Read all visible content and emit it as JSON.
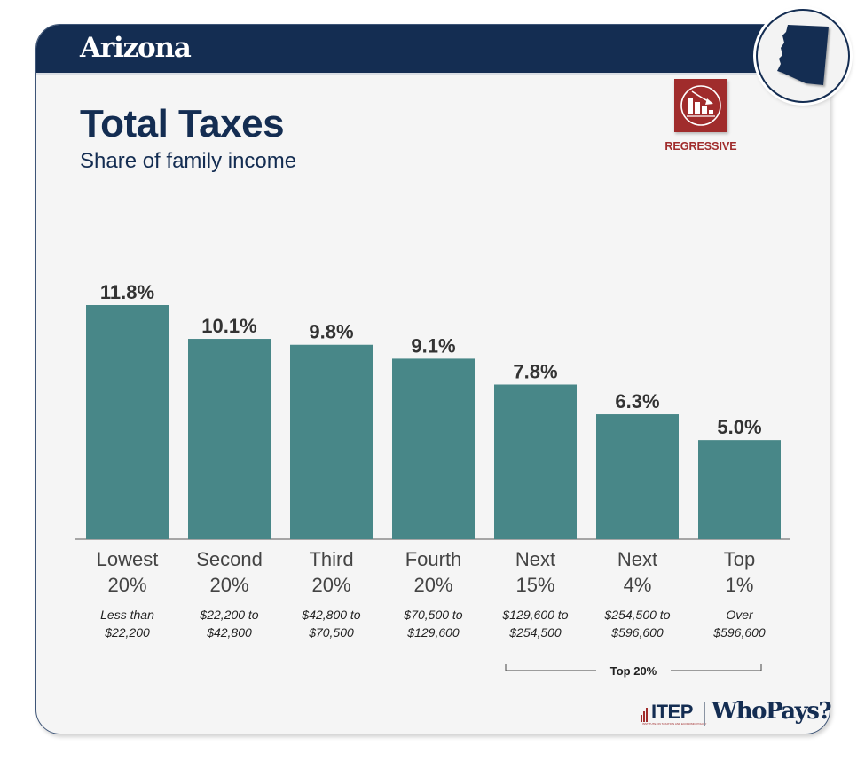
{
  "header": {
    "state_name": "Arizona",
    "state_badge_icon": "arizona-state-shape-icon"
  },
  "title": "Total Taxes",
  "subtitle": "Share of family income",
  "rating": {
    "icon": "regressive-chart-icon",
    "label": "REGRESSIVE",
    "color": "#a02c2c"
  },
  "colors": {
    "navy": "#142d52",
    "bar": "#488788",
    "card_bg": "#f5f5f5"
  },
  "chart_data": {
    "type": "bar",
    "title": "Total Taxes",
    "subtitle": "Share of family income",
    "xlabel": "",
    "ylabel": "",
    "ylim": [
      0,
      11.8
    ],
    "grid": false,
    "categories": [
      {
        "line1": "Lowest",
        "line2": "20%",
        "range1": "Less than",
        "range2": "$22,200"
      },
      {
        "line1": "Second",
        "line2": "20%",
        "range1": "$22,200 to",
        "range2": "$42,800"
      },
      {
        "line1": "Third",
        "line2": "20%",
        "range1": "$42,800 to",
        "range2": "$70,500"
      },
      {
        "line1": "Fourth",
        "line2": "20%",
        "range1": "$70,500 to",
        "range2": "$129,600"
      },
      {
        "line1": "Next",
        "line2": "15%",
        "range1": "$129,600 to",
        "range2": "$254,500"
      },
      {
        "line1": "Next",
        "line2": "4%",
        "range1": "$254,500 to",
        "range2": "$596,600"
      },
      {
        "line1": "Top",
        "line2": "1%",
        "range1": "Over",
        "range2": "$596,600"
      }
    ],
    "values": [
      11.8,
      10.1,
      9.8,
      9.1,
      7.8,
      6.3,
      5.0
    ],
    "value_labels": [
      "11.8%",
      "10.1%",
      "9.8%",
      "9.1%",
      "7.8%",
      "6.3%",
      "5.0%"
    ],
    "bracket": {
      "label": "Top 20%",
      "from_index": 4,
      "to_index": 6
    }
  },
  "footer": {
    "itep_label": "ITEP",
    "itep_subtitle": "INSTITUTE ON TAXATION AND ECONOMIC POLICY",
    "whopays_label": "WhoPays?"
  }
}
